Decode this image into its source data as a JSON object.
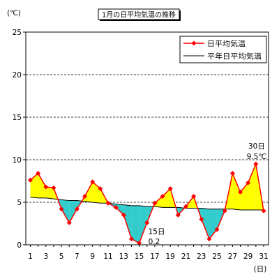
{
  "chart_data": {
    "type": "line",
    "title": "1月の日平均気温の推移",
    "xlabel": "(日)",
    "ylabel": "(℃)",
    "x": [
      1,
      2,
      3,
      4,
      5,
      6,
      7,
      8,
      9,
      10,
      11,
      12,
      13,
      14,
      15,
      16,
      17,
      18,
      19,
      20,
      21,
      22,
      23,
      24,
      25,
      26,
      27,
      28,
      29,
      30,
      31
    ],
    "x_ticks": [
      1,
      3,
      5,
      7,
      9,
      11,
      13,
      15,
      17,
      19,
      21,
      23,
      25,
      27,
      29,
      31
    ],
    "y_ticks": [
      0,
      5,
      10,
      15,
      20,
      25
    ],
    "xlim": [
      1,
      31
    ],
    "ylim": [
      0,
      25
    ],
    "grid": true,
    "legend_position": "top-right",
    "series": [
      {
        "name": "日平均気温",
        "color": "#FF0000",
        "marker": "diamond",
        "values": [
          7.6,
          8.4,
          6.8,
          6.7,
          4.2,
          2.6,
          4.2,
          5.7,
          7.4,
          6.6,
          4.9,
          4.4,
          3.5,
          0.7,
          0.2,
          2.6,
          4.9,
          5.7,
          6.6,
          3.5,
          4.5,
          5.7,
          3.0,
          0.7,
          1.8,
          4.0,
          8.4,
          6.2,
          7.3,
          9.5,
          4.0
        ]
      },
      {
        "name": "平年日平均気温",
        "color": "#000000",
        "values": [
          5.6,
          5.5,
          5.5,
          5.4,
          5.3,
          5.2,
          5.2,
          5.1,
          5.0,
          4.9,
          4.9,
          4.8,
          4.7,
          4.6,
          4.6,
          4.5,
          4.5,
          4.4,
          4.4,
          4.4,
          4.3,
          4.3,
          4.3,
          4.2,
          4.2,
          4.2,
          4.2,
          4.1,
          4.1,
          4.1,
          4.1
        ]
      }
    ],
    "fill_between": {
      "above_color": "#FFFF00",
      "below_color": "#33CCCC"
    },
    "annotations": [
      {
        "day": 15,
        "lines": [
          "15日",
          "0.2"
        ]
      },
      {
        "day": 30,
        "lines": [
          "30日",
          "9.5℃"
        ]
      }
    ]
  }
}
